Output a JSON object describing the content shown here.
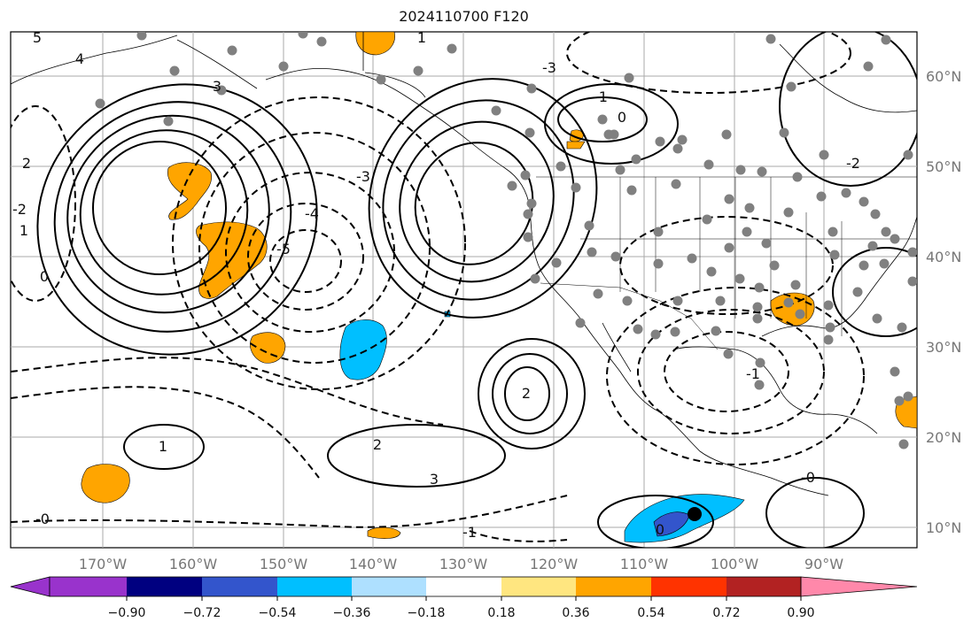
{
  "title": "2024110700 F120",
  "map": {
    "lon_labels": [
      "170°W",
      "160°W",
      "150°W",
      "140°W",
      "130°W",
      "120°W",
      "110°W",
      "100°W",
      "90°W"
    ],
    "lat_labels": [
      "60°N",
      "50°N",
      "40°N",
      "30°N",
      "20°N",
      "10°N"
    ],
    "contour_labels": [
      "5",
      "4",
      "3",
      "2",
      "1",
      "0",
      "-0",
      "-1",
      "-2",
      "-3",
      "-4",
      "-5",
      "1",
      "2",
      "3",
      "-1",
      "0",
      "2",
      "-3",
      "1",
      "0",
      "-0",
      "-1",
      "-2"
    ],
    "observation_marker_color": "#808080",
    "highlight_marker_color": "#000000"
  },
  "colorbar": {
    "colors": [
      "#9933cc",
      "#000080",
      "#3355cc",
      "#00bfff",
      "#aee0ff",
      "#ffffff",
      "#ffe680",
      "#ffa500",
      "#ff3300",
      "#b22222",
      "#ff88aa"
    ],
    "tick_labels": [
      "−0.90",
      "−0.72",
      "−0.54",
      "−0.36",
      "−0.18",
      "0.18",
      "0.36",
      "0.54",
      "0.72",
      "0.90"
    ]
  }
}
